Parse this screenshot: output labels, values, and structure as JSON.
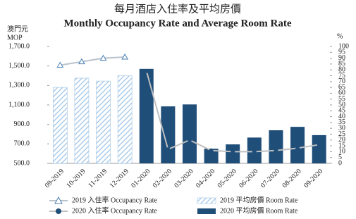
{
  "chart_data": {
    "type": "combo",
    "title": "每月酒店入住率及平均房價",
    "subtitle": "Monthly Occupancy Rate and Average Room Rate",
    "y_label": [
      "澳門元",
      "MOP"
    ],
    "y2_label": "%",
    "categories": [
      "09-2019",
      "10-2019",
      "11-2019",
      "12-2019",
      "01-2020",
      "02-2020",
      "03-2020",
      "04-2020",
      "05-2020",
      "06-2020",
      "07-2020",
      "08-2020",
      "09-2020"
    ],
    "ylim": [
      500,
      1700
    ],
    "yticks": [
      {
        "value": 500,
        "label": "500.0"
      },
      {
        "value": 700,
        "label": "700.0"
      },
      {
        "value": 900,
        "label": "900.0"
      },
      {
        "value": 1100,
        "label": "1,100.0"
      },
      {
        "value": 1300,
        "label": "1,300.0"
      },
      {
        "value": 1500,
        "label": "1,500.0"
      },
      {
        "value": 1700,
        "label": "1,700.0"
      }
    ],
    "y2lim": [
      0,
      100
    ],
    "y2ticks": [
      0,
      5,
      10,
      15,
      20,
      25,
      30,
      35,
      40,
      45,
      50,
      55,
      60,
      65,
      70,
      75,
      80,
      85,
      90,
      95,
      100
    ],
    "series": [
      {
        "name": "2019 入住率 Occupancy Rate",
        "type": "line",
        "axis": "y2",
        "marker": "triangle",
        "color": "#4a7fb5",
        "line_color": "#b9c3cc",
        "values": [
          84,
          87,
          90,
          91,
          null,
          null,
          null,
          null,
          null,
          null,
          null,
          null,
          null
        ]
      },
      {
        "name": "2019 平均房價 Room Rate",
        "type": "bar",
        "hatch": true,
        "color": "#9dc3e6",
        "values": [
          1280,
          1375,
          1345,
          1400,
          null,
          null,
          null,
          null,
          null,
          null,
          null,
          null,
          null
        ]
      },
      {
        "name": "2020 入住率 Occupancy Rate",
        "type": "line",
        "axis": "y2",
        "marker": "circle",
        "color": "#1f4e79",
        "line_color": "#bfbfbf",
        "values": [
          null,
          null,
          null,
          null,
          79,
          12,
          20,
          11,
          10,
          10,
          11,
          13,
          16
        ]
      },
      {
        "name": "2020 平均房價 Room Rate",
        "type": "bar",
        "color": "#1f4e79",
        "values": [
          null,
          null,
          null,
          null,
          1470,
          1085,
          1105,
          650,
          695,
          765,
          840,
          875,
          790
        ]
      }
    ]
  }
}
